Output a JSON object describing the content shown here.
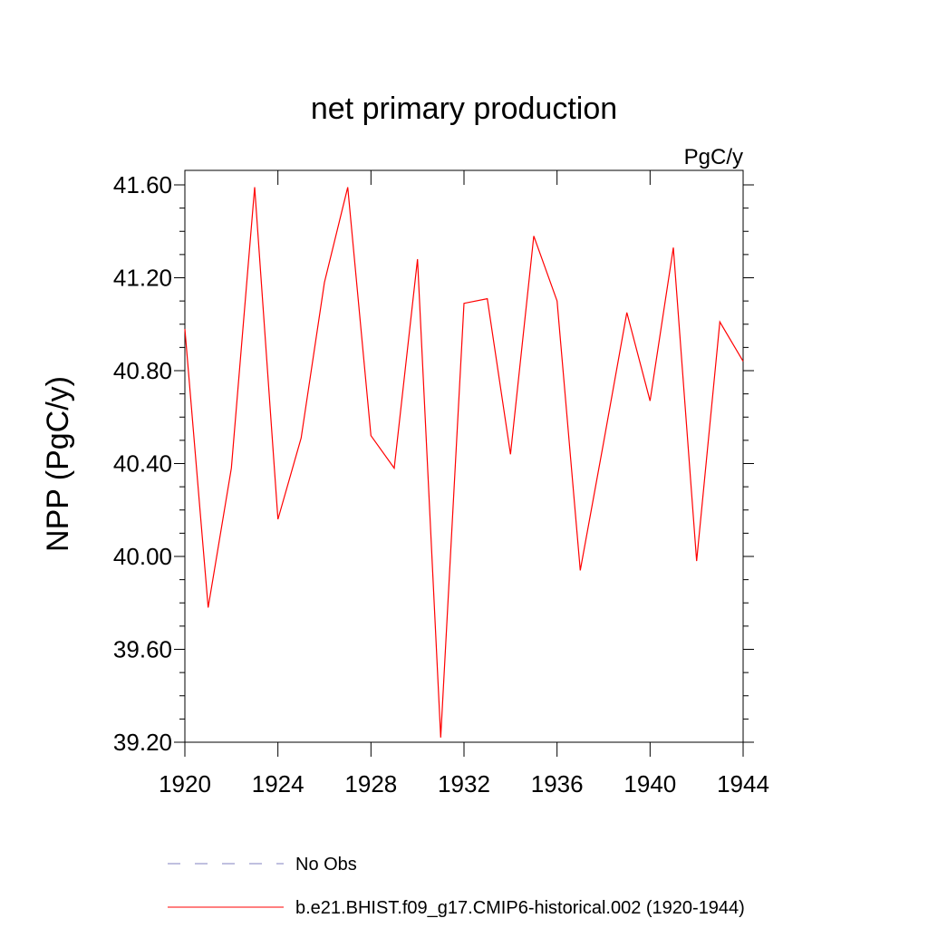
{
  "chart_data": {
    "type": "line",
    "title": "net primary production",
    "units_label": "PgC/y",
    "ylabel": "NPP  (PgC/y)",
    "xlabel": "",
    "xlim": [
      1920,
      1944
    ],
    "ylim": [
      39.2,
      41.66
    ],
    "x_ticks": [
      "1920",
      "1924",
      "1928",
      "1932",
      "1936",
      "1940",
      "1944"
    ],
    "y_ticks": [
      "39.20",
      "39.60",
      "40.00",
      "40.40",
      "40.80",
      "41.20",
      "41.60"
    ],
    "grid": false,
    "legend_position": "bottom",
    "series": [
      {
        "name": "b.e21.BHIST.f09_g17.CMIP6-historical.002 (1920-1944)",
        "color": "#ff0000",
        "style": "solid",
        "x": [
          1920,
          1921,
          1922,
          1923,
          1924,
          1925,
          1926,
          1927,
          1928,
          1929,
          1930,
          1931,
          1932,
          1933,
          1934,
          1935,
          1936,
          1937,
          1938,
          1939,
          1940,
          1941,
          1942,
          1943,
          1944
        ],
        "y": [
          40.98,
          39.78,
          40.38,
          41.59,
          40.16,
          40.51,
          41.18,
          41.59,
          40.52,
          40.38,
          41.28,
          39.22,
          41.09,
          41.11,
          40.44,
          41.38,
          41.1,
          39.94,
          40.49,
          41.05,
          40.67,
          41.33,
          39.98,
          41.01,
          40.84
        ]
      }
    ],
    "legend": [
      {
        "label": "No Obs",
        "color": "#8080c0",
        "style": "dashed"
      },
      {
        "label": "b.e21.BHIST.f09_g17.CMIP6-historical.002 (1920-1944)",
        "color": "#ff0000",
        "style": "solid"
      }
    ]
  }
}
